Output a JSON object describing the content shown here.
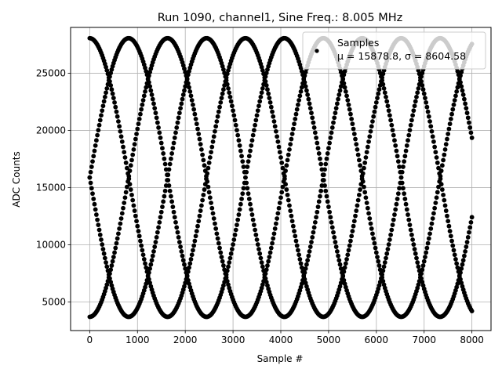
{
  "chart_data": {
    "type": "scatter",
    "title": "Run 1090, channel1, Sine Freq.: 8.005 MHz",
    "xlabel": "Sample #",
    "ylabel": "ADC Counts",
    "xlim": [
      -400,
      8400
    ],
    "ylim": [
      2500,
      29000
    ],
    "x_ticks": [
      0,
      1000,
      2000,
      3000,
      4000,
      5000,
      6000,
      7000,
      8000
    ],
    "y_ticks": [
      5000,
      10000,
      15000,
      20000,
      25000
    ],
    "grid": true,
    "legend": {
      "placement": "top-right",
      "title": "Samples",
      "entry": "μ = 15878.8, σ = 8604.58"
    },
    "series": [
      {
        "name": "Samples",
        "color": "#000000",
        "marker": "circle",
        "model": {
          "mean": 15878.8,
          "amplitude": 12180,
          "period_samples": 3260,
          "phases_deg": [
            90,
            0,
            -90,
            180
          ],
          "x_range": [
            0,
            8000
          ]
        }
      }
    ],
    "stats": {
      "mean": 15878.8,
      "sigma": 8604.58
    }
  }
}
